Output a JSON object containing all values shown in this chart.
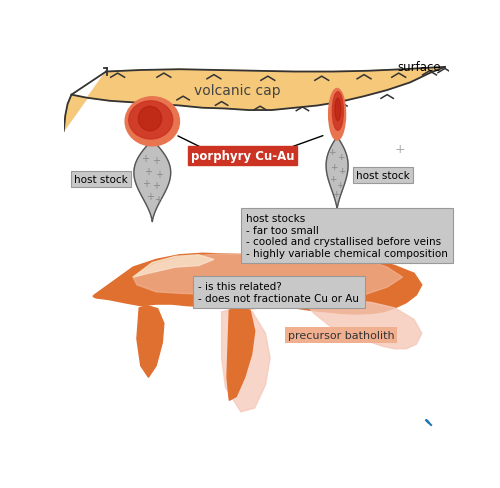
{
  "bg_color": "#ffffff",
  "volcanic_cap_color": "#f5c87a",
  "volcanic_cap_edge": "#333333",
  "stock_body_color": "#c0c0c0",
  "stock_edge_color": "#555555",
  "stock_top_red": "#cc3322",
  "stock_top_orange": "#e87550",
  "batholith_dark_orange": "#e07030",
  "batholith_mid_orange": "#e89060",
  "batholith_light_orange": "#f0b090",
  "batholith_pink": "#f5c8b8",
  "batholith_bright": "#f8d0b0",
  "porphyry_box_color": "#cc3322",
  "box_gray": "#c8c8c8",
  "box_edge": "#999999",
  "surface_label": "surface",
  "volcanic_label": "volcanic cap",
  "porphyry_label": "porphyry Cu-Au",
  "host_stock_label": "host stock",
  "host_stocks_text": "host stocks\n- far too small\n- cooled and crystallised before veins\n- highly variable chemical composition",
  "batholith_label": "precursor batholith",
  "batholith_text": "- is this related?\n- does not fractionate Cu or Au"
}
